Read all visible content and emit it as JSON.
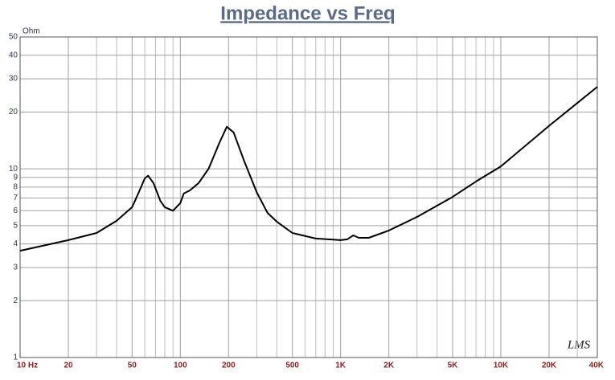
{
  "chart_data": {
    "type": "line",
    "title": "Impedance vs Freq",
    "y_unit": "Ohm",
    "watermark": "LMS",
    "log_x": true,
    "log_y": true,
    "grid": true,
    "xlim": [
      10,
      40000
    ],
    "ylim": [
      1,
      50
    ],
    "xticks": [
      {
        "value": 10,
        "label": "10 Hz"
      },
      20,
      50,
      100,
      200,
      500,
      {
        "value": 1000,
        "label": "1K"
      },
      {
        "value": 2000,
        "label": "2K"
      },
      {
        "value": 5000,
        "label": "5K"
      },
      {
        "value": 10000,
        "label": "10K"
      },
      {
        "value": 20000,
        "label": "20K"
      },
      {
        "value": 40000,
        "label": "40K"
      }
    ],
    "x_minor_ticks": [
      30,
      40,
      60,
      70,
      80,
      90,
      300,
      400,
      600,
      700,
      800,
      900,
      3000,
      4000,
      6000,
      7000,
      8000,
      9000,
      30000
    ],
    "yticks": [
      1,
      2,
      3,
      4,
      5,
      6,
      7,
      8,
      9,
      10,
      20,
      30,
      40,
      50
    ],
    "series": [
      {
        "color": "#000000",
        "x": [
          10,
          20,
          30,
          40,
          50,
          55,
          60,
          63,
          68,
          75,
          80,
          90,
          100,
          105,
          115,
          130,
          150,
          175,
          195,
          215,
          250,
          300,
          350,
          400,
          500,
          700,
          1000,
          1100,
          1200,
          1300,
          1500,
          2000,
          3000,
          5000,
          7000,
          10000,
          20000,
          40000
        ],
        "values": [
          3.68,
          4.19,
          4.57,
          5.3,
          6.26,
          7.5,
          8.9,
          9.2,
          8.4,
          6.77,
          6.26,
          6.0,
          6.58,
          7.4,
          7.69,
          8.4,
          10,
          13.7,
          16.7,
          15.6,
          11.0,
          7.5,
          5.84,
          5.25,
          4.57,
          4.27,
          4.19,
          4.23,
          4.44,
          4.31,
          4.31,
          4.71,
          5.56,
          7.1,
          8.57,
          10.3,
          16.9,
          27.2
        ]
      }
    ]
  }
}
